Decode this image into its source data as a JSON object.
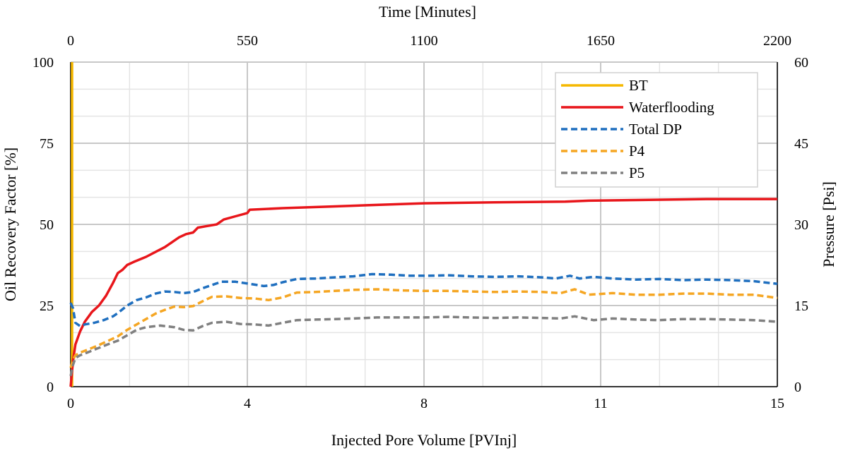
{
  "chart_data": {
    "type": "line",
    "x_bottom": {
      "label": "Injected Pore Volume  [PVInj]",
      "range": [
        0,
        15
      ],
      "ticks": [
        0,
        3.75,
        7.5,
        11.25,
        15
      ],
      "tick_labels": [
        "0",
        "4",
        "8",
        "11",
        "15"
      ],
      "minor_divisions_between_major": 3
    },
    "x_top": {
      "label": "Time [Minutes]",
      "range": [
        0,
        2200
      ],
      "ticks": [
        0,
        550,
        1100,
        1650,
        2200
      ],
      "tick_labels": [
        "0",
        "550",
        "1100",
        "1650",
        "2200"
      ]
    },
    "y_left": {
      "label": "Oil Recovery Factor [%]",
      "range": [
        0,
        100
      ],
      "ticks": [
        0,
        25,
        50,
        75,
        100
      ],
      "tick_labels": [
        "0",
        "25",
        "50",
        "75",
        "100"
      ]
    },
    "y_right": {
      "label": "Pressure [Psi]",
      "range": [
        0,
        60
      ],
      "ticks": [
        0,
        15,
        30,
        45,
        60
      ],
      "tick_labels": [
        "0",
        "15",
        "30",
        "45",
        "60"
      ]
    },
    "grid": true,
    "legend": "top-right",
    "series": [
      {
        "name": "BT",
        "axis": "left",
        "color": "#F5B800",
        "dash": "solid",
        "points": [
          [
            0.03,
            0
          ],
          [
            0.03,
            100
          ]
        ]
      },
      {
        "name": "Waterflooding",
        "axis": "left",
        "color": "#E8161B",
        "dash": "solid",
        "points": [
          [
            0,
            0
          ],
          [
            0.05,
            8
          ],
          [
            0.1,
            13
          ],
          [
            0.2,
            17
          ],
          [
            0.3,
            20
          ],
          [
            0.45,
            23
          ],
          [
            0.6,
            25
          ],
          [
            0.75,
            28
          ],
          [
            0.9,
            32
          ],
          [
            1.0,
            35
          ],
          [
            1.1,
            36
          ],
          [
            1.2,
            37.5
          ],
          [
            1.35,
            38.5
          ],
          [
            1.6,
            40
          ],
          [
            1.8,
            41.5
          ],
          [
            2.0,
            43
          ],
          [
            2.15,
            44.5
          ],
          [
            2.3,
            46
          ],
          [
            2.45,
            47
          ],
          [
            2.6,
            47.5
          ],
          [
            2.7,
            49
          ],
          [
            2.9,
            49.5
          ],
          [
            3.1,
            50
          ],
          [
            3.25,
            51.5
          ],
          [
            3.5,
            52.5
          ],
          [
            3.75,
            53.5
          ],
          [
            3.8,
            54.5
          ],
          [
            4.5,
            55
          ],
          [
            5.5,
            55.5
          ],
          [
            6.5,
            56
          ],
          [
            7.5,
            56.5
          ],
          [
            9,
            56.8
          ],
          [
            10.5,
            57
          ],
          [
            11,
            57.3
          ],
          [
            12,
            57.5
          ],
          [
            13.5,
            57.8
          ],
          [
            15,
            57.8
          ]
        ]
      },
      {
        "name": "Total DP",
        "axis": "right",
        "color": "#1F6FBF",
        "dash": "dashed",
        "points": [
          [
            0,
            15.5
          ],
          [
            0.05,
            14.5
          ],
          [
            0.1,
            11.8
          ],
          [
            0.2,
            11.2
          ],
          [
            0.3,
            11.5
          ],
          [
            0.5,
            11.8
          ],
          [
            0.7,
            12.3
          ],
          [
            0.9,
            13.0
          ],
          [
            1.0,
            13.6
          ],
          [
            1.2,
            15.0
          ],
          [
            1.4,
            16.0
          ],
          [
            1.6,
            16.5
          ],
          [
            1.8,
            17.2
          ],
          [
            2.0,
            17.6
          ],
          [
            2.2,
            17.5
          ],
          [
            2.4,
            17.3
          ],
          [
            2.6,
            17.5
          ],
          [
            2.8,
            18.2
          ],
          [
            3.0,
            18.8
          ],
          [
            3.2,
            19.4
          ],
          [
            3.5,
            19.4
          ],
          [
            3.8,
            19.0
          ],
          [
            4.1,
            18.6
          ],
          [
            4.3,
            18.8
          ],
          [
            4.5,
            19.3
          ],
          [
            4.8,
            19.9
          ],
          [
            5.2,
            20.0
          ],
          [
            5.6,
            20.2
          ],
          [
            6.0,
            20.4
          ],
          [
            6.4,
            20.8
          ],
          [
            6.8,
            20.7
          ],
          [
            7.2,
            20.5
          ],
          [
            7.6,
            20.5
          ],
          [
            8.0,
            20.6
          ],
          [
            8.5,
            20.4
          ],
          [
            9.0,
            20.3
          ],
          [
            9.5,
            20.4
          ],
          [
            10.0,
            20.2
          ],
          [
            10.3,
            20.0
          ],
          [
            10.6,
            20.5
          ],
          [
            10.8,
            20.0
          ],
          [
            11.1,
            20.3
          ],
          [
            11.5,
            20.0
          ],
          [
            12.0,
            19.8
          ],
          [
            12.5,
            19.9
          ],
          [
            13.0,
            19.7
          ],
          [
            13.5,
            19.8
          ],
          [
            14.0,
            19.7
          ],
          [
            14.5,
            19.5
          ],
          [
            15.0,
            19.0
          ]
        ]
      },
      {
        "name": "P4",
        "axis": "right",
        "color": "#F5A623",
        "dash": "dashed",
        "points": [
          [
            0,
            3.5
          ],
          [
            0.05,
            5.0
          ],
          [
            0.1,
            5.8
          ],
          [
            0.2,
            6.3
          ],
          [
            0.35,
            6.8
          ],
          [
            0.55,
            7.5
          ],
          [
            0.75,
            8.3
          ],
          [
            1.0,
            9.3
          ],
          [
            1.2,
            10.5
          ],
          [
            1.5,
            12.0
          ],
          [
            1.8,
            13.5
          ],
          [
            2.0,
            14.2
          ],
          [
            2.2,
            14.8
          ],
          [
            2.4,
            14.7
          ],
          [
            2.6,
            14.9
          ],
          [
            2.8,
            15.8
          ],
          [
            3.0,
            16.6
          ],
          [
            3.3,
            16.7
          ],
          [
            3.6,
            16.4
          ],
          [
            3.9,
            16.3
          ],
          [
            4.2,
            16.0
          ],
          [
            4.5,
            16.5
          ],
          [
            4.8,
            17.4
          ],
          [
            5.2,
            17.5
          ],
          [
            5.6,
            17.7
          ],
          [
            6.0,
            17.9
          ],
          [
            6.5,
            18.0
          ],
          [
            7.0,
            17.8
          ],
          [
            7.5,
            17.7
          ],
          [
            8.0,
            17.7
          ],
          [
            8.5,
            17.6
          ],
          [
            9.0,
            17.5
          ],
          [
            9.5,
            17.6
          ],
          [
            10.0,
            17.5
          ],
          [
            10.4,
            17.3
          ],
          [
            10.7,
            18.0
          ],
          [
            11.0,
            17.0
          ],
          [
            11.5,
            17.3
          ],
          [
            12.0,
            17.0
          ],
          [
            12.5,
            17.0
          ],
          [
            13.0,
            17.2
          ],
          [
            13.5,
            17.2
          ],
          [
            14.0,
            17.0
          ],
          [
            14.5,
            17.0
          ],
          [
            15.0,
            16.4
          ]
        ]
      },
      {
        "name": "P5",
        "axis": "right",
        "color": "#808080",
        "dash": "dashed",
        "points": [
          [
            0,
            2.0
          ],
          [
            0.05,
            4.0
          ],
          [
            0.1,
            5.3
          ],
          [
            0.2,
            5.8
          ],
          [
            0.35,
            6.3
          ],
          [
            0.55,
            7.0
          ],
          [
            0.75,
            7.7
          ],
          [
            1.0,
            8.5
          ],
          [
            1.2,
            9.5
          ],
          [
            1.4,
            10.5
          ],
          [
            1.6,
            11.0
          ],
          [
            1.9,
            11.3
          ],
          [
            2.2,
            11.0
          ],
          [
            2.4,
            10.5
          ],
          [
            2.6,
            10.4
          ],
          [
            2.8,
            11.2
          ],
          [
            3.0,
            11.8
          ],
          [
            3.3,
            12.0
          ],
          [
            3.6,
            11.6
          ],
          [
            3.9,
            11.5
          ],
          [
            4.2,
            11.3
          ],
          [
            4.5,
            11.8
          ],
          [
            4.8,
            12.3
          ],
          [
            5.2,
            12.4
          ],
          [
            5.6,
            12.5
          ],
          [
            6.0,
            12.6
          ],
          [
            6.5,
            12.8
          ],
          [
            7.0,
            12.8
          ],
          [
            7.5,
            12.8
          ],
          [
            8.0,
            12.9
          ],
          [
            8.5,
            12.8
          ],
          [
            9.0,
            12.7
          ],
          [
            9.5,
            12.8
          ],
          [
            10.0,
            12.7
          ],
          [
            10.4,
            12.6
          ],
          [
            10.7,
            13.0
          ],
          [
            11.1,
            12.3
          ],
          [
            11.5,
            12.6
          ],
          [
            12.0,
            12.4
          ],
          [
            12.5,
            12.3
          ],
          [
            13.0,
            12.5
          ],
          [
            13.5,
            12.5
          ],
          [
            14.0,
            12.4
          ],
          [
            14.5,
            12.3
          ],
          [
            15.0,
            12.0
          ]
        ]
      }
    ]
  }
}
